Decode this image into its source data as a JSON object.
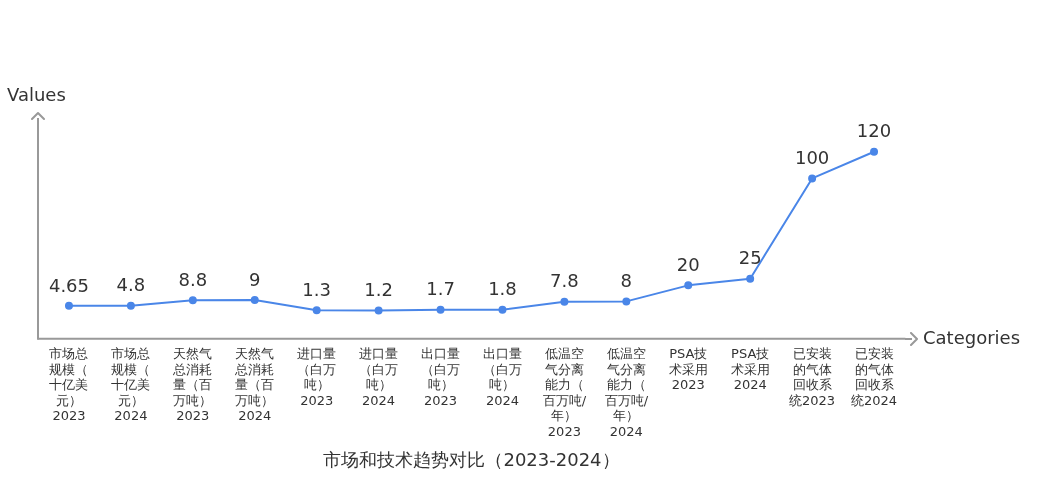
{
  "chart_data": {
    "type": "line",
    "title": "市场和技术趋势对比（2023-2024）",
    "xlabel": "Categories",
    "ylabel": "Values",
    "categories": [
      "市场总规模（十亿美元）2023",
      "市场总规模（十亿美元）2024",
      "天然气总消耗量（百万吨）2023",
      "天然气总消耗量（百万吨）2024",
      "进口量（白万吨）2023",
      "进口量（白万吨）2024",
      "出口量（白万吨）2023",
      "出口量（白万吨）2024",
      "低温空气分离能力（百万吨/年）2023",
      "低温空气分离能力（百万吨/年）2024",
      "PSA技术采用2023",
      "PSA技术采用2024",
      "已安装的气体回收系统2023",
      "已安装的气体回收系统2024"
    ],
    "series": [
      {
        "color": "#4a86e8",
        "values": [
          4.65,
          4.8,
          8.8,
          9,
          1.3,
          1.2,
          1.7,
          1.8,
          7.8,
          8,
          20,
          25,
          100,
          120
        ]
      }
    ],
    "tick_labels": "x",
    "grid": false,
    "legend": false,
    "marker": "circle",
    "line_style": "solid",
    "data_labels": true
  }
}
